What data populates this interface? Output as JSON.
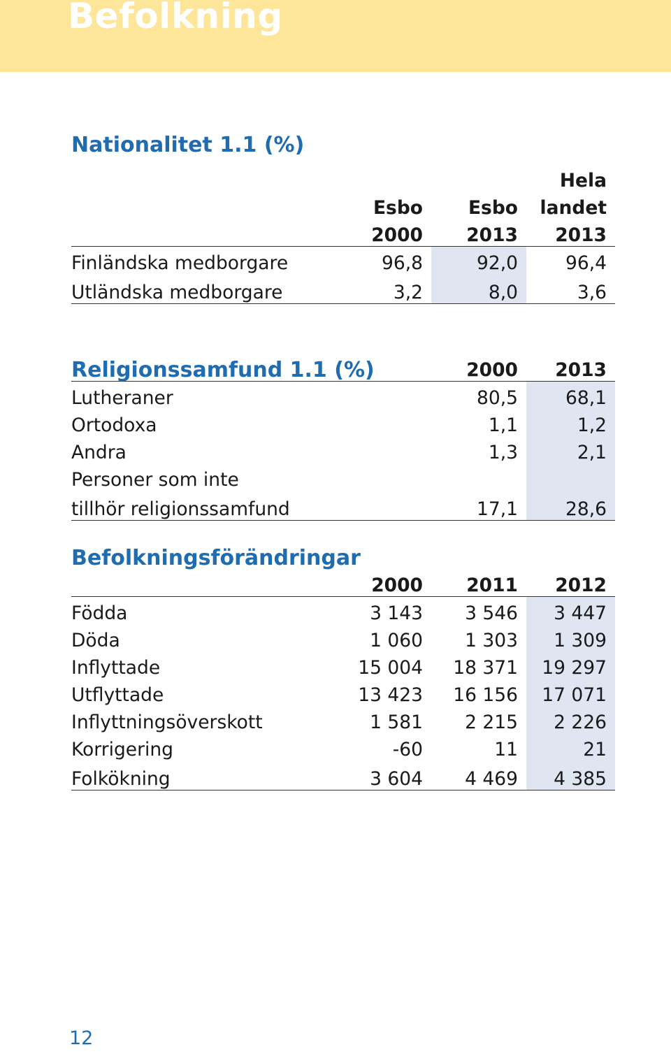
{
  "header": {
    "title": "Befolkning"
  },
  "nationality": {
    "heading": "Nationalitet 1.1 (%)",
    "columns": [
      {
        "line1": "",
        "line2": "Esbo",
        "line3": "2000"
      },
      {
        "line1": "",
        "line2": "Esbo",
        "line3": "2013"
      },
      {
        "line1": "Hela",
        "line2": "landet",
        "line3": "2013"
      }
    ],
    "rows": [
      {
        "label": "Finländska medborgare",
        "values": [
          "96,8",
          "92,0",
          "96,4"
        ]
      },
      {
        "label": "Utländska medborgare",
        "values": [
          "3,2",
          "8,0",
          "3,6"
        ]
      }
    ]
  },
  "religion": {
    "heading": "Religionssamfund 1.1 (%)",
    "columns": [
      "2000",
      "2013"
    ],
    "rows": [
      {
        "label": "Lutheraner",
        "values": [
          "80,5",
          "68,1"
        ]
      },
      {
        "label": "Ortodoxa",
        "values": [
          "1,1",
          "1,2"
        ]
      },
      {
        "label": "Andra",
        "values": [
          "1,3",
          "2,1"
        ]
      },
      {
        "label": "Personer som inte",
        "label2": "tillhör religionssamfund",
        "values": [
          "17,1",
          "28,6"
        ]
      }
    ]
  },
  "population_change": {
    "heading": "Befolkningsförändringar",
    "columns": [
      "2000",
      "2011",
      "2012"
    ],
    "rows": [
      {
        "label": "Födda",
        "values": [
          "3 143",
          "3 546",
          "3 447"
        ]
      },
      {
        "label": "Döda",
        "values": [
          "1 060",
          "1 303",
          "1 309"
        ]
      },
      {
        "label": "Inflyttade",
        "values": [
          "15 004",
          "18 371",
          "19 297"
        ]
      },
      {
        "label": "Utflyttade",
        "values": [
          "13 423",
          "16 156",
          "17 071"
        ]
      },
      {
        "label": "Inflyttningsöverskott",
        "values": [
          "1 581",
          "2 215",
          "2 226"
        ]
      },
      {
        "label": "Korrigering",
        "values": [
          "-60",
          "11",
          "21"
        ]
      },
      {
        "label": "Folkökning",
        "values": [
          "3 604",
          "4 469",
          "4 385"
        ]
      }
    ]
  },
  "footer": {
    "page_number": "12"
  },
  "colors": {
    "banner": "#fde59a",
    "heading": "#1f6cb0",
    "highlight": "#dfe5f1"
  }
}
